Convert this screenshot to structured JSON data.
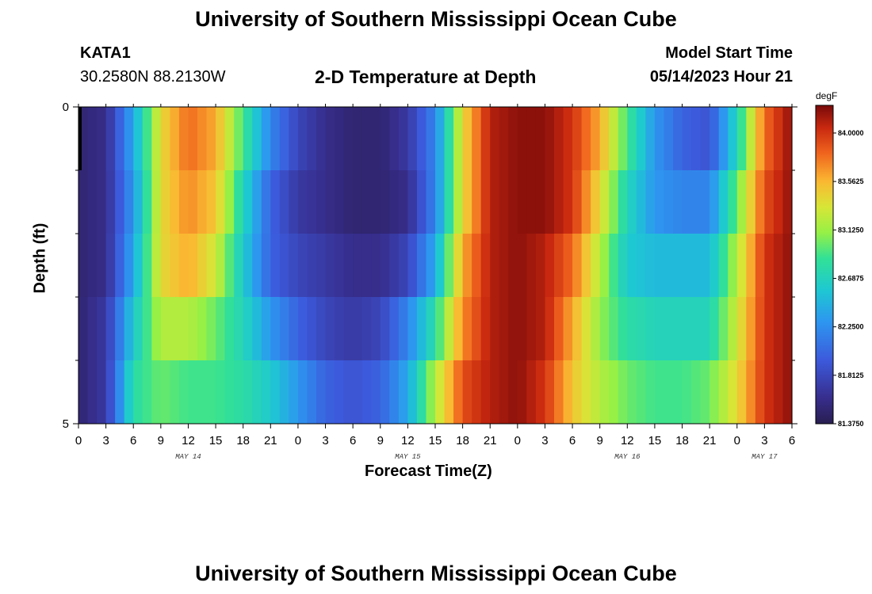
{
  "header": {
    "title": "University of Southern Mississippi Ocean Cube",
    "station": "KATA1",
    "coords": "30.2580N  88.2130W",
    "subtitle": "2-D Temperature at Depth",
    "start_label": "Model Start Time",
    "start_value": "05/14/2023 Hour 21"
  },
  "footer": {
    "title": "University of Southern Mississippi Ocean Cube"
  },
  "chart_data": {
    "type": "heatmap",
    "title": "2-D Temperature at Depth",
    "xlabel": "Forecast Time(Z)",
    "ylabel": "Depth (ft)",
    "xlim": [
      0,
      78
    ],
    "ylim": [
      5,
      0
    ],
    "x_hours_since_may14_00": [
      0,
      3,
      6,
      9,
      12,
      15,
      18,
      21,
      24,
      27,
      30,
      33,
      36,
      39,
      42,
      45,
      48,
      51,
      54,
      57,
      60,
      63,
      66,
      69,
      72,
      75,
      78
    ],
    "x_tick_labels": [
      "0",
      "3",
      "6",
      "9",
      "12",
      "15",
      "18",
      "21",
      "0",
      "3",
      "6",
      "9",
      "12",
      "15",
      "18",
      "21",
      "0",
      "3",
      "6",
      "9",
      "12",
      "15",
      "18",
      "21",
      "0",
      "3",
      "6"
    ],
    "y_tick_labels": [
      "0",
      "5"
    ],
    "date_labels": [
      {
        "label": "MAY 14",
        "hour": 12
      },
      {
        "label": "MAY 15",
        "hour": 36
      },
      {
        "label": "MAY 16",
        "hour": 60
      },
      {
        "label": "MAY 17",
        "hour": 75
      }
    ],
    "depth_layers_ft": [
      0.5,
      1.5,
      2.5,
      3.5,
      4.5
    ],
    "values_degF": [
      [
        81.5,
        81.6,
        82.4,
        83.4,
        83.8,
        83.6,
        82.9,
        82.2,
        81.8,
        81.6,
        81.5,
        81.5,
        81.7,
        82.2,
        83.4,
        84.1,
        84.2,
        84.2,
        84.0,
        83.6,
        82.9,
        82.3,
        82.0,
        81.9,
        82.7,
        83.8,
        84.2
      ],
      [
        81.5,
        81.6,
        82.3,
        83.4,
        83.7,
        83.5,
        82.7,
        82.0,
        81.7,
        81.6,
        81.5,
        81.5,
        81.6,
        82.2,
        83.4,
        84.1,
        84.2,
        84.2,
        84.0,
        83.4,
        82.7,
        82.3,
        82.2,
        82.2,
        83.0,
        83.9,
        84.2
      ],
      [
        81.5,
        81.6,
        82.4,
        83.4,
        83.6,
        83.3,
        82.6,
        82.0,
        81.8,
        81.7,
        81.6,
        81.6,
        81.8,
        82.4,
        83.6,
        84.1,
        84.2,
        84.1,
        83.8,
        83.2,
        82.6,
        82.5,
        82.5,
        82.5,
        83.2,
        84.0,
        84.2
      ],
      [
        81.5,
        81.7,
        82.6,
        83.2,
        83.2,
        83.0,
        82.7,
        82.3,
        82.0,
        81.8,
        81.7,
        81.8,
        82.2,
        82.8,
        83.7,
        84.1,
        84.2,
        84.1,
        83.6,
        83.1,
        82.8,
        82.7,
        82.7,
        82.7,
        83.3,
        84.0,
        84.2
      ],
      [
        81.5,
        81.7,
        82.8,
        83.0,
        82.9,
        82.9,
        82.8,
        82.6,
        82.3,
        82.0,
        81.9,
        82.0,
        82.4,
        83.2,
        83.9,
        84.1,
        84.2,
        84.0,
        83.5,
        83.2,
        83.0,
        82.9,
        82.9,
        83.0,
        83.4,
        84.0,
        84.2
      ]
    ],
    "colorbar": {
      "unit": "degF",
      "min": 81.375,
      "max": 84.25,
      "tick_labels": [
        "84.0000",
        "83.5625",
        "83.1250",
        "82.6875",
        "82.2500",
        "81.8125",
        "81.3750"
      ],
      "tick_values": [
        84.0,
        83.5625,
        83.125,
        82.6875,
        82.25,
        81.8125,
        81.375
      ]
    }
  }
}
